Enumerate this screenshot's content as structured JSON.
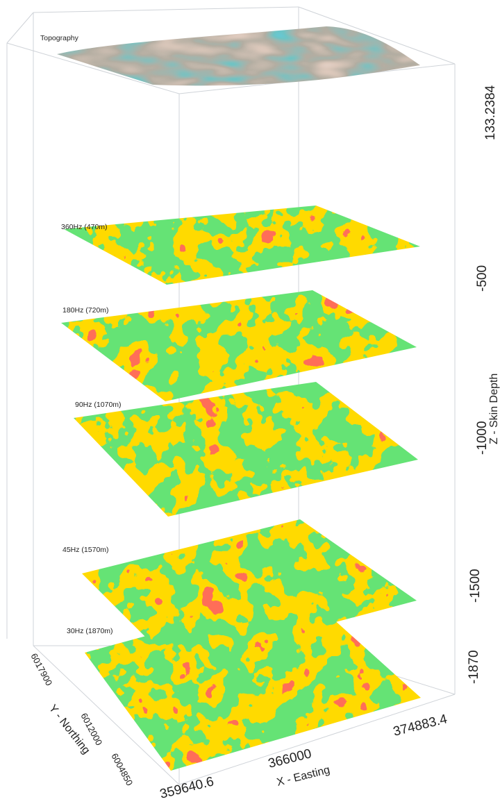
{
  "figure": {
    "surface_label": "Topography",
    "slices": [
      {
        "label": "360Hz (470m)"
      },
      {
        "label": "180Hz (720m)"
      },
      {
        "label": "90Hz (1070m)"
      },
      {
        "label": "45Hz (1570m)"
      },
      {
        "label": "30Hz (1870m)"
      }
    ],
    "z_axis": {
      "title": "Z - Skin Depth",
      "ticks": [
        "133.2384",
        "-500",
        "-1000",
        "-1500",
        "-1870"
      ]
    },
    "x_axis": {
      "title": "X - Easting",
      "ticks": [
        "359640.6",
        "366000",
        "374883.4"
      ]
    },
    "y_axis": {
      "title": "Y - Northing",
      "ticks": [
        "6017900",
        "6012000",
        "6004850"
      ]
    },
    "colors": {
      "high": "#e0007a",
      "upper": "#ff2a1a",
      "mid_high": "#ffb300",
      "mid": "#22c52e",
      "mid_low": "#26b8c8",
      "low": "#1a3fd6",
      "extreme": "#f08ae8"
    }
  }
}
